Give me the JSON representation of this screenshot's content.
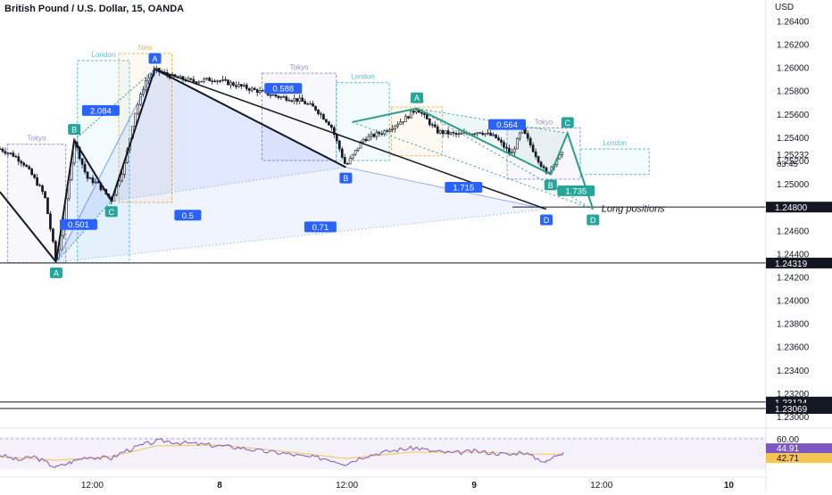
{
  "header": {
    "title": "British Pound / U.S. Dollar, 15, OANDA",
    "currency": "USD"
  },
  "colors": {
    "bull": "#26a69a",
    "bear": "#ef5350",
    "candle": "#131722",
    "pattern_black": "#131722",
    "pattern_teal": "#2a9d8f",
    "label_blue": "#2962ff",
    "label_green": "#26a69a",
    "tokyo": "#9c8fd8",
    "london": "#56c2d6",
    "newyork": "#f0b352",
    "rsi_line": "#7e57c2",
    "rsi_ma": "#f5c451",
    "rsi_badge": "#7e57c2",
    "rsi_ma_badge": "#f5c451"
  },
  "chart_data": {
    "type": "candlestick",
    "title": "British Pound / U.S. Dollar, 15, OANDA",
    "ylim": [
      1.229,
      1.2658
    ],
    "price_ticks": [
      "1.26400",
      "1.26200",
      "1.26000",
      "1.25800",
      "1.25600",
      "1.25400",
      "1.25200",
      "1.25000",
      "1.24800",
      "1.24600",
      "1.24400",
      "1.24200",
      "1.24000",
      "1.23800",
      "1.23600",
      "1.23400",
      "1.23200",
      "1.23000"
    ],
    "time_ticks": [
      {
        "label": "12:00",
        "hours": 12
      },
      {
        "label": "8",
        "hours": 24
      },
      {
        "label": "12:00",
        "hours": 36
      },
      {
        "label": "9",
        "hours": 48
      },
      {
        "label": "12:00",
        "hours": 60
      },
      {
        "label": "10",
        "hours": 72
      }
    ],
    "xlim_hours": [
      3.3,
      75.5
    ],
    "last_price": {
      "value": 1.25232,
      "label": "1.25232",
      "countdown": "03:45"
    },
    "levels": [
      {
        "price": 1.248,
        "label": "1.24800",
        "from_hours": 51.6
      },
      {
        "price": 1.24319,
        "label": "1.24319",
        "from_hours": 3.3
      },
      {
        "price": 1.23124,
        "label": "1.23124",
        "from_hours": 3.3
      },
      {
        "price": 1.23069,
        "label": "1.23069",
        "from_hours": 3.3
      }
    ],
    "price_path": [
      [
        3.3,
        1.253
      ],
      [
        4.5,
        1.2525
      ],
      [
        5.5,
        1.2518
      ],
      [
        6.5,
        1.2505
      ],
      [
        7.5,
        1.249
      ],
      [
        8.6,
        1.2433
      ],
      [
        9.4,
        1.2475
      ],
      [
        10.3,
        1.2537
      ],
      [
        11.5,
        1.2505
      ],
      [
        12.5,
        1.25
      ],
      [
        13.8,
        1.2486
      ],
      [
        15,
        1.2515
      ],
      [
        16,
        1.256
      ],
      [
        17,
        1.2588
      ],
      [
        17.9,
        1.2598
      ],
      [
        19.5,
        1.2592
      ],
      [
        21.5,
        1.2588
      ],
      [
        23.5,
        1.259
      ],
      [
        25.5,
        1.2585
      ],
      [
        27.5,
        1.258
      ],
      [
        29.5,
        1.2575
      ],
      [
        31.5,
        1.2572
      ],
      [
        33,
        1.2565
      ],
      [
        34.5,
        1.255
      ],
      [
        35.9,
        1.2515
      ],
      [
        37.5,
        1.2538
      ],
      [
        39.5,
        1.2545
      ],
      [
        41.5,
        1.2556
      ],
      [
        42.6,
        1.2565
      ],
      [
        44.5,
        1.2545
      ],
      [
        46.5,
        1.2542
      ],
      [
        48.5,
        1.2545
      ],
      [
        50,
        1.254
      ],
      [
        51.5,
        1.2525
      ],
      [
        52.5,
        1.2547
      ],
      [
        53.5,
        1.253
      ],
      [
        54.8,
        1.2508
      ],
      [
        55.8,
        1.2522
      ],
      [
        56.4,
        1.2526
      ]
    ],
    "pattern_left": {
      "points": [
        {
          "id": "A",
          "hours": 8.6,
          "price": 1.24327
        },
        {
          "id": "B",
          "hours": 10.3,
          "price": 1.25376
        },
        {
          "id": "C",
          "hours": 13.8,
          "price": 1.24853
        },
        {
          "id": "A2",
          "hours": 17.9,
          "price": 1.25986
        },
        {
          "id": "B2",
          "hours": 35.9,
          "price": 1.25142
        },
        {
          "id": "D",
          "hours": 54.8,
          "price": 1.24782
        }
      ],
      "labels": [
        {
          "text": "A",
          "pt": "A"
        },
        {
          "text": "B",
          "pt": "B"
        },
        {
          "text": "C",
          "pt": "C"
        },
        {
          "text": "A",
          "pt": "A2"
        },
        {
          "text": "B",
          "pt": "B2"
        },
        {
          "text": "D",
          "pt": "D"
        }
      ],
      "ratios": [
        {
          "text": "2.084",
          "hours": 12.8,
          "price": 1.2563
        },
        {
          "text": "0.501",
          "hours": 10.7,
          "price": 1.2465
        },
        {
          "text": "0.5",
          "hours": 21,
          "price": 1.2473
        },
        {
          "text": "0.588",
          "hours": 30,
          "price": 1.2582
        },
        {
          "text": "0.71",
          "hours": 33.5,
          "price": 1.2463
        },
        {
          "text": "1.715",
          "hours": 47,
          "price": 1.2497
        }
      ]
    },
    "pattern_right": {
      "points": [
        {
          "id": "A",
          "hours": 42.6,
          "price": 1.25648
        },
        {
          "id": "B",
          "hours": 55.2,
          "price": 1.25082
        },
        {
          "id": "C",
          "hours": 56.8,
          "price": 1.25435
        },
        {
          "id": "D",
          "hours": 59.2,
          "price": 1.24782
        }
      ],
      "labels": [
        {
          "text": "A",
          "pt": "A"
        },
        {
          "text": "B",
          "pt": "B"
        },
        {
          "text": "C",
          "pt": "C"
        },
        {
          "text": "D",
          "pt": "D"
        }
      ],
      "ratios": [
        {
          "text": "0.564",
          "hours": 51.1,
          "price": 1.2551
        },
        {
          "text": "1.735",
          "hours": 57.6,
          "price": 1.2494
        }
      ],
      "projection_start_hours": 36.5
    },
    "sessions": [
      {
        "name": "Tokyo",
        "label": "Tokyo",
        "from_hours": 4.0,
        "to_hours": 9.5,
        "low": 1.2432,
        "high": 1.2534,
        "color": "tokyo"
      },
      {
        "name": "London",
        "label": "London",
        "from_hours": 10.6,
        "to_hours": 15.5,
        "low": 1.2432,
        "high": 1.2606,
        "color": "london"
      },
      {
        "name": "New York",
        "label": "New",
        "from_hours": 14.5,
        "to_hours": 19.5,
        "low": 1.2484,
        "high": 1.2612,
        "color": "newyork"
      },
      {
        "name": "Tokyo",
        "label": "Tokyo",
        "from_hours": 28.0,
        "to_hours": 35.0,
        "low": 1.252,
        "high": 1.2595,
        "color": "tokyo"
      },
      {
        "name": "London",
        "label": "London",
        "from_hours": 35.0,
        "to_hours": 40.0,
        "low": 1.252,
        "high": 1.2587,
        "color": "london"
      },
      {
        "name": "New York",
        "label": "New",
        "from_hours": 40.2,
        "to_hours": 45.0,
        "low": 1.2524,
        "high": 1.2566,
        "color": "newyork"
      },
      {
        "name": "Tokyo",
        "label": "Tokyo",
        "from_hours": 51.1,
        "to_hours": 58.0,
        "low": 1.2504,
        "high": 1.2548,
        "color": "tokyo"
      },
      {
        "name": "London",
        "label": "London",
        "from_hours": 58.0,
        "to_hours": 64.5,
        "low": 1.2508,
        "high": 1.253,
        "color": "london"
      }
    ],
    "annotation": {
      "text": "Long positions",
      "hours": 60,
      "price": 1.2479
    },
    "rsi": {
      "level_label": "60.00",
      "value": 44.91,
      "value_label": "44.91",
      "ma": 42.71,
      "ma_label": "42.71",
      "path": [
        [
          3.3,
          42
        ],
        [
          5,
          36
        ],
        [
          6.5,
          40
        ],
        [
          8.6,
          28
        ],
        [
          10,
          34
        ],
        [
          11.5,
          40
        ],
        [
          13.8,
          38
        ],
        [
          15,
          46
        ],
        [
          17,
          54
        ],
        [
          18.5,
          58
        ],
        [
          20,
          56
        ],
        [
          22,
          54
        ],
        [
          24,
          52
        ],
        [
          26,
          50
        ],
        [
          28,
          46
        ],
        [
          30,
          44
        ],
        [
          32,
          40
        ],
        [
          34,
          38
        ],
        [
          35.9,
          32
        ],
        [
          37.5,
          40
        ],
        [
          39,
          44
        ],
        [
          41,
          48
        ],
        [
          42.6,
          50
        ],
        [
          44,
          46
        ],
        [
          46,
          44
        ],
        [
          48,
          46
        ],
        [
          50,
          44
        ],
        [
          51.5,
          42
        ],
        [
          52.5,
          46
        ],
        [
          53.5,
          40
        ],
        [
          54.8,
          34
        ],
        [
          55.8,
          42
        ],
        [
          56.4,
          44.9
        ]
      ],
      "ma_path": [
        [
          3.3,
          40
        ],
        [
          8.6,
          36
        ],
        [
          13.8,
          40
        ],
        [
          18,
          52
        ],
        [
          24,
          53
        ],
        [
          30,
          46
        ],
        [
          35.9,
          38
        ],
        [
          42,
          45
        ],
        [
          48,
          45
        ],
        [
          53,
          43
        ],
        [
          56.4,
          42.7
        ]
      ]
    }
  }
}
